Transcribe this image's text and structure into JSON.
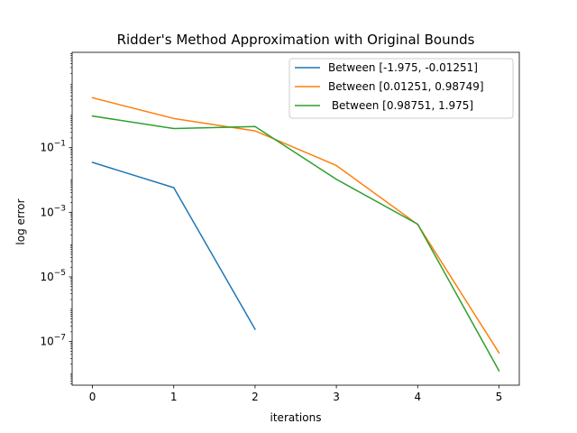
{
  "chart_data": {
    "type": "line",
    "title": "Ridder's Method Approximation with Original Bounds",
    "xlabel": "iterations",
    "ylabel": "log error",
    "yscale": "log",
    "xlim": [
      -0.25,
      5.25
    ],
    "ylim_log10": [
      -8.35,
      1.95
    ],
    "x_ticks": [
      0,
      1,
      2,
      3,
      4,
      5
    ],
    "y_ticks": [
      {
        "exp": -1,
        "label_base": "10",
        "label_exp": "−1"
      },
      {
        "exp": -3,
        "label_base": "10",
        "label_exp": "−3"
      },
      {
        "exp": -5,
        "label_base": "10",
        "label_exp": "−5"
      },
      {
        "exp": -7,
        "label_base": "10",
        "label_exp": "−7"
      }
    ],
    "grid": false,
    "legend_position": "upper right",
    "series": [
      {
        "name": "Between [-1.975, -0.01251]",
        "color": "#1f77b4",
        "x": [
          0,
          1,
          2
        ],
        "y": [
          0.035,
          0.0058,
          2.4e-07
        ]
      },
      {
        "name": "Between [0.01251, 0.98749]",
        "color": "#ff7f0e",
        "x": [
          0,
          1,
          2,
          3,
          4,
          5
        ],
        "y": [
          3.5,
          0.8,
          0.33,
          0.028,
          0.00042,
          4.5e-08
        ]
      },
      {
        "name": " Between [0.98751, 1.975]",
        "color": "#2ca02c",
        "x": [
          0,
          1,
          2,
          3,
          4,
          5
        ],
        "y": [
          0.95,
          0.39,
          0.45,
          0.0105,
          0.00043,
          1.25e-08
        ]
      }
    ]
  }
}
